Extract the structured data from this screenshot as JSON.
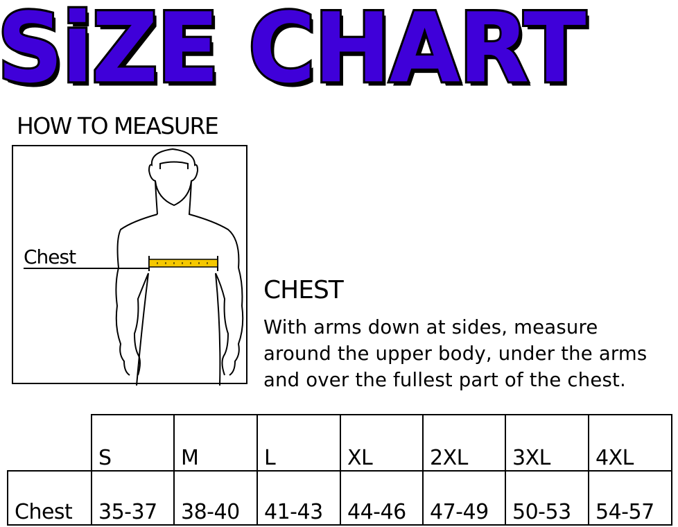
{
  "title": "SiZE CHART",
  "colors": {
    "title_fill": "#3f00d9",
    "tape": "#f5c800"
  },
  "how_to_measure": "HOW TO MEASURE",
  "figure": {
    "chest_label": "Chest"
  },
  "section": {
    "title": "CHEST",
    "lines": [
      "With arms down at sides, measure",
      "around the upper body, under the arms",
      "and over the fullest part of the chest."
    ]
  },
  "table": {
    "sizes": [
      "S",
      "M",
      "L",
      "XL",
      "2XL",
      "3XL",
      "4XL"
    ],
    "row_label": "Chest",
    "values": [
      "35-37",
      "38-40",
      "41-43",
      "44-46",
      "47-49",
      "50-53",
      "54-57"
    ]
  }
}
